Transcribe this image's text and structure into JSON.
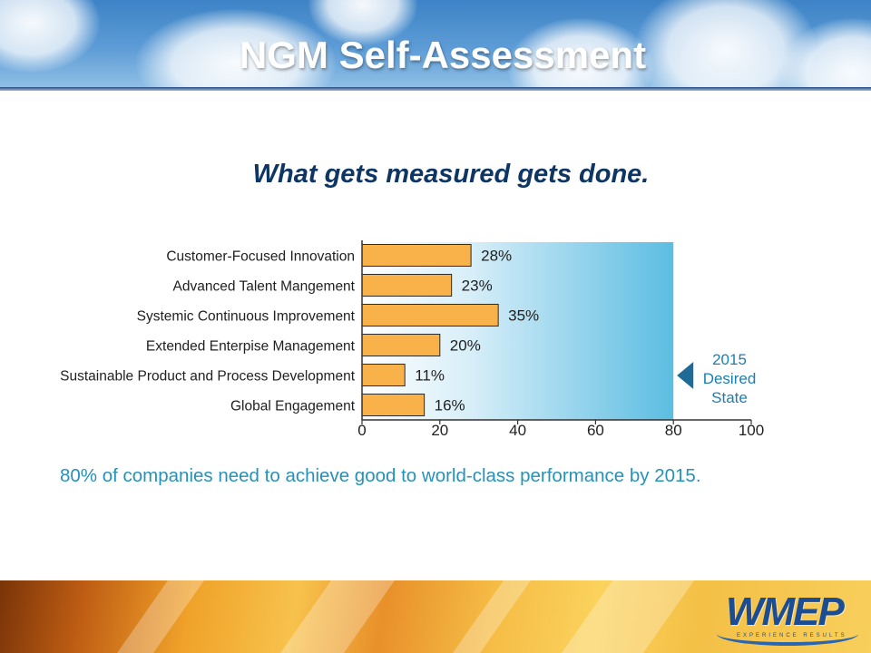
{
  "slide": {
    "title": "NGM Self-Assessment",
    "subtitle": "What gets measured gets done.",
    "note": "80% of companies need to achieve good to world-class performance by 2015.",
    "logo": {
      "text": "WMEP",
      "tagline": "EXPERIENCE RESULTS"
    }
  },
  "colors": {
    "bar": "#f9b14a",
    "bar_stroke": "#2b2b2b",
    "target_band": "#5cbde2",
    "title_text": "#0e3563",
    "note_text": "#2592b8"
  },
  "chart_data": {
    "type": "bar",
    "orientation": "horizontal",
    "categories": [
      "Customer-Focused Innovation",
      "Advanced Talent Mangement",
      "Systemic Continuous Improvement",
      "Extended Enterpise Management",
      "Sustainable Product and Process Development",
      "Global Engagement"
    ],
    "values": [
      28,
      23,
      35,
      20,
      11,
      16
    ],
    "value_labels": [
      "28%",
      "23%",
      "35%",
      "20%",
      "11%",
      "16%"
    ],
    "xlim": [
      0,
      100
    ],
    "xticks": [
      0,
      20,
      40,
      60,
      80,
      100
    ],
    "target": {
      "value": 80,
      "label_lines": [
        "2015",
        "Desired",
        "State"
      ]
    },
    "grid": false
  }
}
